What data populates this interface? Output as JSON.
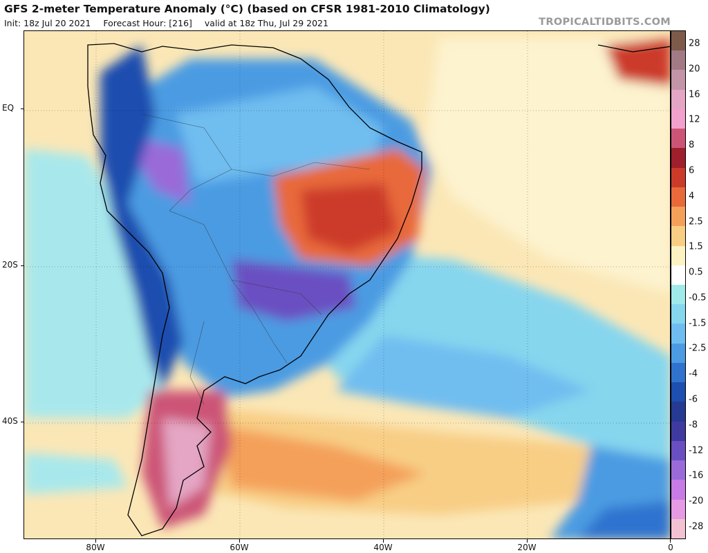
{
  "header": {
    "title": "GFS 2-meter Temperature Anomaly (°C) (based on CFSR 1981-2010 Climatology)",
    "init": "Init: 18z Jul 20 2021",
    "forecast": "Forecast Hour: [216]",
    "valid": "valid at 18z Thu, Jul 29 2021",
    "brand": "TROPICALTIDBITS.COM"
  },
  "map": {
    "lon_range": [
      -90,
      0
    ],
    "lat_range": [
      -55,
      10
    ],
    "lat_labels": [
      {
        "value": 0,
        "text": "EQ"
      },
      {
        "value": -20,
        "text": "20S"
      },
      {
        "value": -40,
        "text": "40S"
      }
    ],
    "lon_labels": [
      {
        "value": -80,
        "text": "80W"
      },
      {
        "value": -60,
        "text": "60W"
      },
      {
        "value": -40,
        "text": "40W"
      },
      {
        "value": -20,
        "text": "20W"
      },
      {
        "value": 0,
        "text": "0"
      }
    ]
  },
  "colorbar": {
    "labels": [
      "28",
      "20",
      "16",
      "12",
      "8",
      "6",
      "4",
      "2.5",
      "1.5",
      "0.5",
      "-0.5",
      "-1.5",
      "-2.5",
      "-4",
      "-6",
      "-8",
      "-12",
      "-16",
      "-20",
      "-28"
    ],
    "colors": [
      "#7d5a4a",
      "#a27a86",
      "#c394a8",
      "#e4a6c4",
      "#f2a0cc",
      "#cc5577",
      "#a01f2c",
      "#cc3a2a",
      "#e8693a",
      "#f4a05a",
      "#f8ce85",
      "#fdf2c2",
      "#ffffff",
      "#9feae9",
      "#86d6ee",
      "#6fbdf0",
      "#4c9be2",
      "#2f73cf",
      "#1e4eaf",
      "#263a92",
      "#3f3aa0",
      "#6a4fc2",
      "#9a6bd8",
      "#c77be4",
      "#e59ae4",
      "#f2c2d2"
    ]
  }
}
